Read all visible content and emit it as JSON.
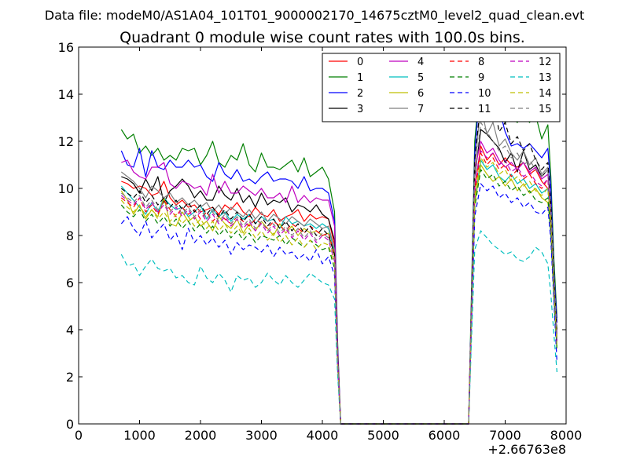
{
  "figure": {
    "suptitle": "Data file: modeM0/AS1A04_101T01_9000002170_14675cztM0_level2_quad_clean.evt"
  },
  "chart_data": {
    "type": "line",
    "title": "Quadrant 0 module wise count rates with 100.0s bins.",
    "xlabel": "",
    "ylabel": "",
    "x_offset_label": "+2.66763e8",
    "xlim": [
      0,
      8000
    ],
    "ylim": [
      0,
      16
    ],
    "xticks": [
      "0",
      "1000",
      "2000",
      "3000",
      "4000",
      "5000",
      "6000",
      "7000",
      "8000"
    ],
    "yticks": [
      "0",
      "2",
      "4",
      "6",
      "8",
      "10",
      "12",
      "14",
      "16"
    ],
    "grid": false,
    "legend_position": "top-right",
    "legend_columns": 4,
    "x": [
      700,
      800,
      900,
      1000,
      1100,
      1200,
      1300,
      1400,
      1500,
      1600,
      1700,
      1800,
      1900,
      2000,
      2100,
      2200,
      2300,
      2400,
      2500,
      2600,
      2700,
      2800,
      2900,
      3000,
      3100,
      3200,
      3300,
      3400,
      3500,
      3600,
      3700,
      3800,
      3900,
      4000,
      4100,
      4200,
      4250,
      4300,
      4350,
      4400,
      6400,
      6450,
      6500,
      6600,
      6700,
      6800,
      6900,
      7000,
      7100,
      7200,
      7300,
      7400,
      7500,
      7600,
      7700,
      7750,
      7800,
      7850
    ],
    "series": [
      {
        "name": "0",
        "color": "#ff0000",
        "style": "solid",
        "values": [
          10.3,
          10.2,
          10.0,
          10.1,
          10.0,
          9.7,
          9.8,
          10.3,
          9.6,
          9.3,
          9.5,
          9.2,
          9.3,
          9.0,
          9.1,
          9.2,
          8.9,
          9.3,
          9.1,
          9.4,
          9.0,
          8.8,
          9.2,
          8.9,
          8.8,
          9.1,
          8.6,
          8.8,
          8.9,
          9.1,
          8.6,
          8.9,
          8.7,
          8.8,
          8.7,
          7.6,
          3.0,
          0,
          0,
          0,
          0,
          5.0,
          10.0,
          11.8,
          11.2,
          11.5,
          11.0,
          11.3,
          11.0,
          10.9,
          11.1,
          10.6,
          10.8,
          10.3,
          10.0,
          8.5,
          6.0,
          3.8
        ]
      },
      {
        "name": "1",
        "color": "#007f00",
        "style": "solid",
        "values": [
          12.5,
          12.1,
          12.3,
          11.5,
          11.8,
          11.4,
          11.7,
          11.2,
          11.4,
          11.2,
          11.7,
          11.6,
          11.7,
          11.0,
          11.4,
          12.0,
          11.1,
          10.9,
          11.4,
          11.2,
          11.9,
          11.0,
          10.7,
          11.5,
          10.9,
          10.9,
          10.8,
          11.0,
          11.2,
          10.7,
          11.3,
          10.5,
          10.7,
          10.9,
          10.4,
          9.0,
          3.5,
          0,
          0,
          0,
          0,
          6.0,
          12.0,
          14.9,
          14.4,
          13.7,
          13.6,
          12.8,
          13.0,
          12.8,
          13.2,
          12.8,
          13.1,
          12.1,
          12.7,
          10.5,
          7.0,
          4.5
        ]
      },
      {
        "name": "2",
        "color": "#0000ff",
        "style": "solid",
        "values": [
          11.6,
          11.0,
          10.9,
          11.7,
          10.5,
          11.6,
          10.9,
          10.8,
          11.2,
          10.9,
          10.9,
          11.2,
          10.9,
          11.0,
          10.5,
          10.3,
          11.1,
          10.6,
          10.4,
          10.8,
          10.3,
          10.4,
          10.2,
          10.5,
          10.7,
          10.3,
          10.4,
          10.4,
          10.3,
          10.0,
          10.5,
          9.9,
          10.0,
          10.0,
          9.8,
          8.6,
          3.3,
          0,
          0,
          0,
          0,
          5.5,
          11.5,
          14.7,
          13.6,
          12.9,
          13.4,
          12.4,
          11.8,
          11.9,
          11.7,
          11.9,
          11.6,
          11.3,
          11.7,
          10.0,
          6.5,
          4.3
        ]
      },
      {
        "name": "3",
        "color": "#000000",
        "style": "solid",
        "values": [
          10.5,
          10.4,
          10.2,
          9.8,
          10.4,
          9.9,
          10.5,
          9.4,
          9.9,
          10.1,
          10.4,
          10.1,
          9.6,
          9.9,
          9.5,
          9.5,
          10.1,
          9.7,
          9.5,
          10.0,
          9.4,
          9.7,
          9.2,
          9.8,
          9.3,
          9.5,
          9.4,
          9.6,
          9.0,
          9.3,
          9.2,
          9.0,
          9.3,
          8.9,
          8.7,
          7.8,
          3.0,
          0,
          0,
          0,
          0,
          5.0,
          10.5,
          12.5,
          12.3,
          12.0,
          11.7,
          11.1,
          11.5,
          10.7,
          11.6,
          10.8,
          11.0,
          10.5,
          10.8,
          8.8,
          6.0,
          3.5
        ]
      },
      {
        "name": "4",
        "color": "#bf00bf",
        "style": "solid",
        "values": [
          11.1,
          11.2,
          10.7,
          10.5,
          10.4,
          10.9,
          10.9,
          11.1,
          10.2,
          10.0,
          10.3,
          10.2,
          10.0,
          10.1,
          9.7,
          10.6,
          9.8,
          10.3,
          9.8,
          9.8,
          10.1,
          9.9,
          9.7,
          10.0,
          9.6,
          9.6,
          9.8,
          9.4,
          10.1,
          9.4,
          9.7,
          9.4,
          9.6,
          9.5,
          9.5,
          8.4,
          3.2,
          0,
          0,
          0,
          0,
          5.3,
          10.8,
          12.0,
          11.5,
          11.7,
          11.2,
          10.9,
          11.1,
          10.8,
          11.1,
          10.7,
          10.9,
          10.4,
          10.6,
          9.2,
          6.2,
          3.8
        ]
      },
      {
        "name": "5",
        "color": "#00bfbf",
        "style": "solid",
        "values": [
          10.1,
          9.8,
          9.5,
          9.2,
          8.9,
          9.4,
          9.0,
          9.6,
          9.3,
          9.1,
          9.2,
          8.8,
          9.0,
          9.3,
          8.7,
          9.1,
          8.8,
          9.0,
          8.6,
          8.9,
          8.7,
          8.9,
          8.5,
          8.8,
          8.6,
          8.7,
          8.3,
          8.8,
          8.5,
          8.6,
          8.4,
          8.5,
          8.3,
          8.5,
          8.3,
          7.3,
          2.8,
          0,
          0,
          0,
          0,
          4.8,
          9.5,
          11.2,
          10.8,
          11.0,
          10.5,
          10.3,
          10.6,
          10.2,
          10.4,
          10.0,
          10.2,
          9.8,
          10.0,
          8.5,
          5.8,
          3.3
        ]
      },
      {
        "name": "6",
        "color": "#bfbf00",
        "style": "solid",
        "values": [
          9.9,
          9.5,
          8.9,
          9.3,
          8.7,
          9.1,
          8.8,
          9.6,
          8.5,
          8.4,
          9.0,
          8.6,
          8.8,
          8.4,
          8.6,
          8.2,
          8.8,
          8.5,
          8.3,
          8.7,
          8.1,
          8.5,
          8.2,
          8.6,
          8.3,
          8.0,
          8.5,
          8.1,
          8.4,
          8.0,
          8.3,
          8.1,
          8.2,
          8.0,
          8.1,
          7.1,
          2.7,
          0,
          0,
          0,
          0,
          4.7,
          9.3,
          11.0,
          10.6,
          10.3,
          10.5,
          10.1,
          10.4,
          9.9,
          10.2,
          9.8,
          10.0,
          9.6,
          9.4,
          8.3,
          5.5,
          3.2
        ]
      },
      {
        "name": "7",
        "color": "#7f7f7f",
        "style": "solid",
        "values": [
          10.7,
          10.5,
          10.3,
          10.0,
          9.6,
          10.1,
          9.9,
          9.6,
          9.8,
          9.4,
          9.6,
          9.3,
          9.5,
          9.2,
          9.4,
          9.0,
          9.3,
          8.9,
          9.2,
          9.0,
          8.8,
          9.1,
          8.7,
          9.0,
          8.6,
          8.9,
          8.7,
          8.5,
          8.8,
          8.6,
          8.4,
          8.7,
          8.5,
          8.3,
          8.4,
          7.4,
          2.9,
          0,
          0,
          0,
          0,
          5.2,
          11.0,
          13.5,
          12.3,
          12.8,
          11.8,
          12.1,
          11.5,
          11.2,
          11.6,
          11.0,
          11.3,
          10.6,
          10.9,
          9.3,
          6.3,
          3.7
        ]
      },
      {
        "name": "8",
        "color": "#ff0000",
        "style": "dashed",
        "values": [
          9.6,
          9.4,
          9.2,
          9.6,
          9.0,
          9.3,
          8.9,
          9.5,
          9.1,
          8.8,
          9.2,
          8.9,
          9.1,
          8.7,
          9.0,
          8.6,
          8.9,
          8.7,
          8.5,
          8.8,
          8.6,
          8.4,
          8.7,
          8.5,
          8.3,
          8.6,
          8.4,
          8.2,
          8.5,
          8.3,
          8.1,
          8.4,
          8.2,
          8.0,
          8.1,
          7.2,
          2.8,
          0,
          0,
          0,
          0,
          4.9,
          9.8,
          11.5,
          11.0,
          11.3,
          10.8,
          11.0,
          10.5,
          10.8,
          10.4,
          10.6,
          10.2,
          10.0,
          10.4,
          8.8,
          5.9,
          3.4
        ]
      },
      {
        "name": "9",
        "color": "#007f00",
        "style": "dashed",
        "values": [
          9.3,
          9.0,
          8.8,
          9.1,
          8.6,
          8.9,
          8.5,
          8.8,
          8.4,
          8.7,
          8.3,
          8.6,
          8.2,
          8.5,
          8.1,
          8.4,
          8.0,
          8.3,
          7.9,
          8.2,
          7.8,
          8.1,
          7.7,
          8.0,
          7.9,
          7.8,
          8.0,
          7.6,
          7.9,
          7.7,
          7.5,
          7.8,
          7.6,
          7.4,
          7.5,
          6.6,
          2.6,
          0,
          0,
          0,
          0,
          4.6,
          9.2,
          10.8,
          10.4,
          10.6,
          10.1,
          10.3,
          9.9,
          10.1,
          9.7,
          9.9,
          9.5,
          9.4,
          9.6,
          8.1,
          5.4,
          3.1
        ]
      },
      {
        "name": "10",
        "color": "#0000ff",
        "style": "dashed",
        "values": [
          8.5,
          8.8,
          8.3,
          8.0,
          8.6,
          7.9,
          8.2,
          8.5,
          7.8,
          8.1,
          7.4,
          8.3,
          7.7,
          8.0,
          7.6,
          7.9,
          7.5,
          7.8,
          7.2,
          7.7,
          7.4,
          7.6,
          7.5,
          7.3,
          7.6,
          7.1,
          7.5,
          7.2,
          7.3,
          7.0,
          7.2,
          6.9,
          7.4,
          6.8,
          7.1,
          6.3,
          2.4,
          0,
          0,
          0,
          0,
          4.4,
          8.8,
          10.2,
          9.9,
          10.1,
          9.6,
          9.8,
          9.4,
          9.6,
          9.2,
          9.4,
          9.0,
          8.9,
          9.2,
          7.8,
          5.2,
          2.6
        ]
      },
      {
        "name": "11",
        "color": "#000000",
        "style": "dashed",
        "values": [
          10.0,
          9.8,
          9.6,
          9.9,
          9.4,
          9.7,
          9.3,
          9.6,
          9.2,
          9.5,
          9.1,
          9.4,
          9.0,
          9.3,
          8.9,
          9.2,
          8.8,
          9.1,
          8.7,
          9.0,
          8.6,
          8.9,
          8.5,
          8.8,
          8.4,
          8.7,
          8.3,
          8.6,
          8.2,
          8.5,
          8.1,
          8.4,
          8.0,
          8.3,
          8.0,
          7.2,
          2.8,
          0,
          0,
          0,
          0,
          5.4,
          11.2,
          13.7,
          13.2,
          13.9,
          12.4,
          12.8,
          11.9,
          12.2,
          11.6,
          11.9,
          11.2,
          10.8,
          11.1,
          9.4,
          6.2,
          3.9
        ]
      },
      {
        "name": "12",
        "color": "#bf00bf",
        "style": "dashed",
        "values": [
          9.7,
          9.5,
          9.3,
          9.6,
          9.1,
          9.4,
          9.0,
          9.3,
          8.9,
          9.2,
          8.8,
          9.1,
          8.7,
          9.0,
          8.6,
          8.9,
          8.5,
          8.8,
          8.4,
          8.7,
          8.3,
          8.6,
          8.2,
          8.5,
          8.1,
          8.4,
          8.0,
          8.3,
          7.9,
          8.2,
          7.8,
          8.1,
          7.7,
          8.0,
          7.8,
          6.9,
          2.7,
          0,
          0,
          0,
          0,
          5.0,
          10.2,
          11.6,
          11.3,
          11.5,
          11.0,
          11.2,
          10.7,
          10.9,
          10.5,
          10.7,
          10.3,
          10.1,
          10.4,
          8.9,
          6.0,
          3.5
        ]
      },
      {
        "name": "13",
        "color": "#00bfbf",
        "style": "dashed",
        "values": [
          7.2,
          6.7,
          6.8,
          6.3,
          6.7,
          7.0,
          6.6,
          6.5,
          6.6,
          6.2,
          6.3,
          6.0,
          5.9,
          6.7,
          6.2,
          6.0,
          6.4,
          6.1,
          5.6,
          6.3,
          6.1,
          6.2,
          5.8,
          6.0,
          6.4,
          6.1,
          5.9,
          6.3,
          6.0,
          5.8,
          6.1,
          6.4,
          6.2,
          6.0,
          5.9,
          5.3,
          2.1,
          0,
          0,
          0,
          0,
          3.8,
          7.4,
          8.2,
          7.9,
          7.6,
          7.4,
          7.2,
          7.3,
          7.0,
          6.9,
          7.1,
          7.5,
          7.3,
          6.8,
          5.5,
          3.8,
          2.2
        ]
      },
      {
        "name": "14",
        "color": "#bfbf00",
        "style": "dashed",
        "values": [
          9.5,
          9.2,
          9.0,
          9.3,
          8.8,
          9.1,
          8.7,
          9.0,
          8.6,
          8.9,
          8.5,
          8.8,
          8.4,
          8.7,
          8.3,
          8.6,
          8.2,
          8.5,
          8.1,
          8.4,
          8.0,
          8.3,
          7.9,
          8.2,
          7.8,
          8.1,
          7.7,
          8.0,
          7.6,
          7.9,
          7.5,
          7.8,
          7.4,
          7.7,
          7.6,
          6.8,
          2.6,
          0,
          0,
          0,
          0,
          4.8,
          9.6,
          11.3,
          10.9,
          11.1,
          10.6,
          10.8,
          10.3,
          10.5,
          10.1,
          10.3,
          9.9,
          9.7,
          10.0,
          8.6,
          5.7,
          3.3
        ]
      },
      {
        "name": "15",
        "color": "#7f7f7f",
        "style": "dashed",
        "values": [
          9.8,
          9.6,
          9.4,
          9.7,
          9.2,
          9.5,
          9.1,
          9.4,
          9.0,
          9.3,
          8.9,
          9.2,
          8.8,
          9.1,
          8.7,
          9.0,
          8.6,
          8.9,
          8.5,
          8.8,
          8.4,
          8.7,
          8.3,
          8.6,
          8.2,
          8.5,
          8.1,
          8.4,
          8.0,
          8.3,
          7.9,
          8.2,
          7.8,
          8.1,
          7.9,
          7.0,
          2.7,
          0,
          0,
          0,
          0,
          5.1,
          10.6,
          12.8,
          12.4,
          12.0,
          11.6,
          11.8,
          11.3,
          11.5,
          11.0,
          11.2,
          10.8,
          10.5,
          10.8,
          9.1,
          6.1,
          3.6
        ]
      }
    ]
  }
}
